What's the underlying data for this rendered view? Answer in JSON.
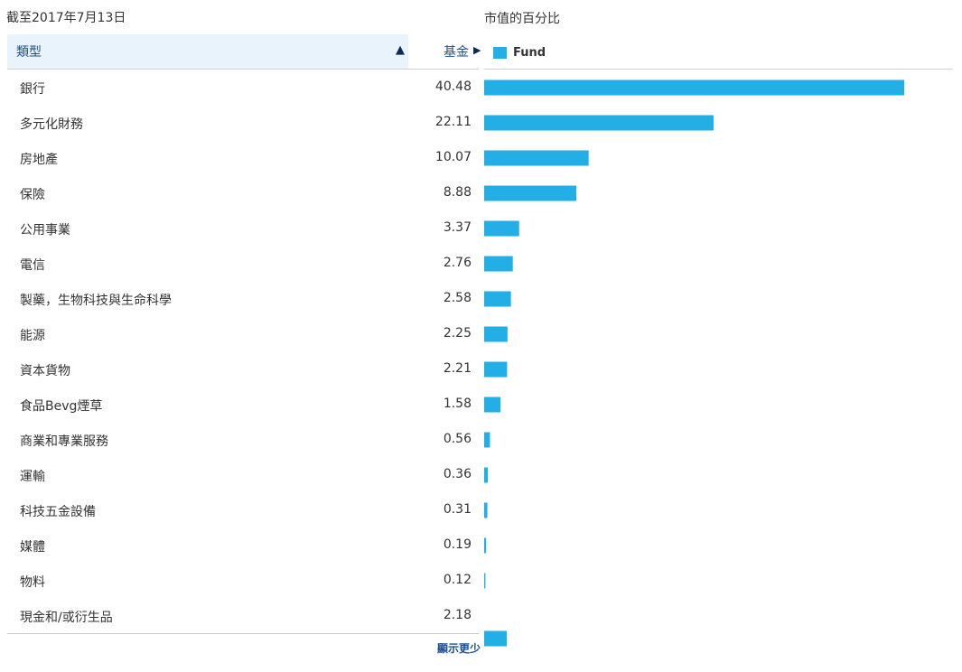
{
  "header": {
    "as_of": "截至2017年7月13日",
    "chart_title": "市值的百分比",
    "col_type": "類型",
    "col_fund": "基金",
    "sort_asc_icon": "▲",
    "sort_right_icon": "▶"
  },
  "legend": {
    "label": "Fund",
    "color": "#23aee5"
  },
  "footer": {
    "show_less": "顯示更少"
  },
  "chart_data": {
    "type": "bar",
    "orientation": "horizontal",
    "title": "市值的百分比",
    "categories": [
      "銀行",
      "多元化財務",
      "房地產",
      "保險",
      "公用事業",
      "電信",
      "製藥，生物科技與生命科學",
      "能源",
      "資本貨物",
      "食品Bevg煙草",
      "商業和專業服務",
      "運輸",
      "科技五金設備",
      "媒體",
      "物料",
      "現金和/或衍生品"
    ],
    "value_labels": [
      "40.48",
      "22.11",
      "10.07",
      "8.88",
      "3.37",
      "2.76",
      "2.58",
      "2.25",
      "2.21",
      "1.58",
      "0.56",
      "0.36",
      "0.31",
      "0.19",
      "0.12",
      "2.18"
    ],
    "series": [
      {
        "name": "Fund",
        "color": "#23aee5",
        "values": [
          40.48,
          22.11,
          10.07,
          8.88,
          3.37,
          2.76,
          2.58,
          2.25,
          2.21,
          1.58,
          0.56,
          0.36,
          0.31,
          0.19,
          0.12,
          2.18
        ]
      }
    ],
    "legend": "top-left",
    "grid": false
  }
}
